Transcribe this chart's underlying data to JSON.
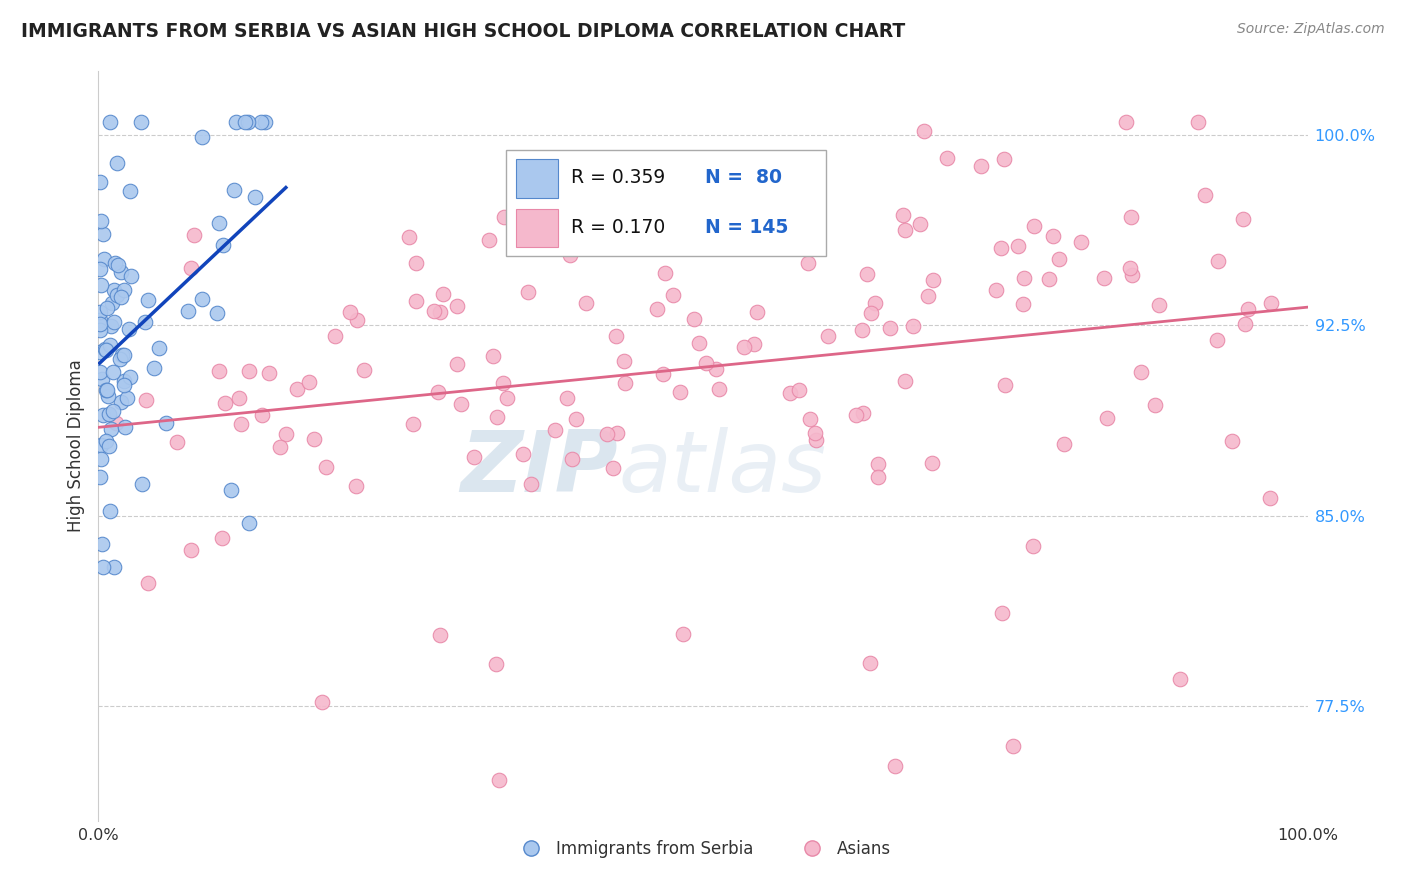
{
  "title": "IMMIGRANTS FROM SERBIA VS ASIAN HIGH SCHOOL DIPLOMA CORRELATION CHART",
  "source": "Source: ZipAtlas.com",
  "ylabel": "High School Diploma",
  "xlim": [
    0.0,
    1.0
  ],
  "ylim": [
    73.0,
    102.5
  ],
  "ytick_values": [
    77.5,
    85.0,
    92.5,
    100.0
  ],
  "ytick_labels": [
    "77.5%",
    "85.0%",
    "92.5%",
    "100.0%"
  ],
  "gridline_color": "#cccccc",
  "serbia_color": "#aac8ee",
  "serbia_edge": "#5588cc",
  "asians_color": "#f5b8cc",
  "asians_edge": "#e888a8",
  "trendline_serbia": "#1144bb",
  "trendline_asians": "#dd6688",
  "watermark_text": "ZIPatlas",
  "watermark_color": "#c8d8e8",
  "title_color": "#222222",
  "source_color": "#888888",
  "tick_color": "#3399ff",
  "label_color": "#333333",
  "legend_r1": "R = 0.359",
  "legend_n1": "N =  80",
  "legend_r2": "R = 0.170",
  "legend_n2": "N = 145"
}
